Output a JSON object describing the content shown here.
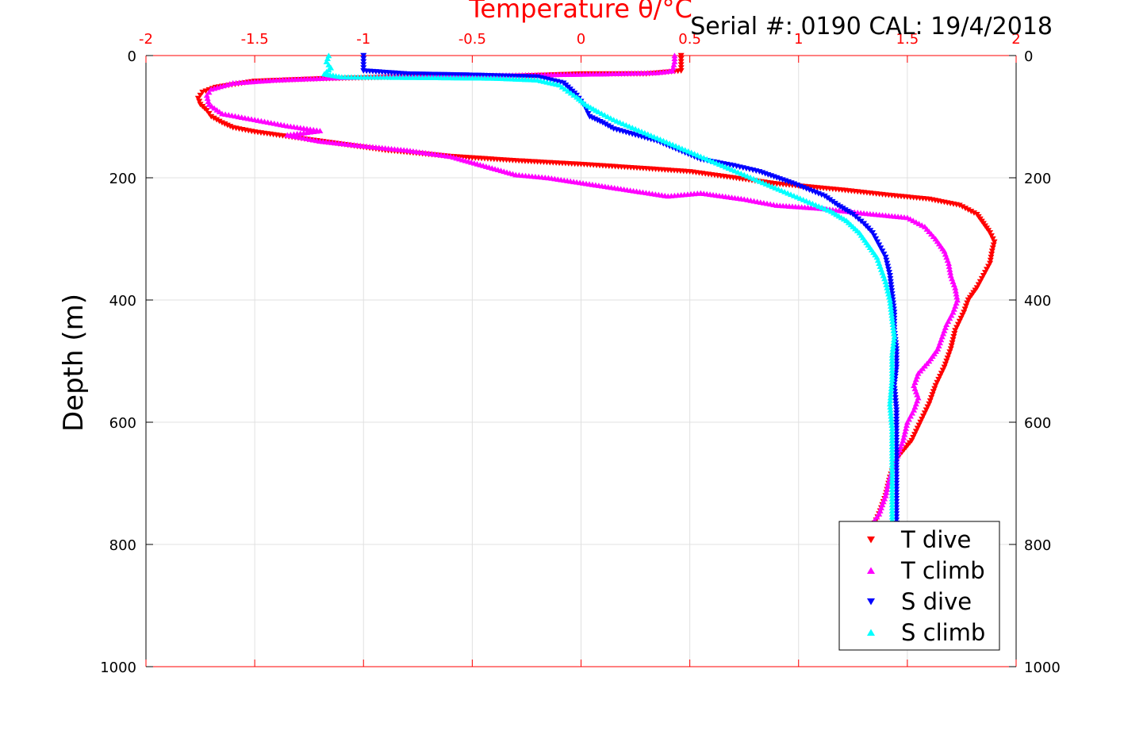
{
  "chart_data": {
    "type": "scatter",
    "title": "Temperature θ/°C",
    "header_text": "Serial #: 0190  CAL: 19/4/2018",
    "ylabel": "Depth (m)",
    "xlim": [
      -2,
      2
    ],
    "ylim": [
      0,
      1000
    ],
    "y_reversed": true,
    "x_ticks": [
      "-2",
      "-1.5",
      "-1",
      "-0.5",
      "0",
      "0.5",
      "1",
      "1.5",
      "2"
    ],
    "y_ticks": [
      "0",
      "200",
      "400",
      "600",
      "800",
      "1000"
    ],
    "grid": true,
    "legend_position": "bottom-right",
    "colors": {
      "axis_top": "#ff0000",
      "axis": "#000000",
      "grid": "#e0e0e0",
      "t_dive": "#ff0000",
      "t_climb": "#ff00ff",
      "s_dive": "#0000ff",
      "s_climb": "#00ffff"
    },
    "series": [
      {
        "name": "T dive",
        "marker": "triangle-down",
        "color": "#ff0000",
        "points": [
          [
            0.46,
            0
          ],
          [
            0.46,
            10
          ],
          [
            0.46,
            25
          ],
          [
            0.3,
            30
          ],
          [
            0.0,
            30
          ],
          [
            -0.4,
            35
          ],
          [
            -0.8,
            35
          ],
          [
            -1.2,
            38
          ],
          [
            -1.5,
            42
          ],
          [
            -1.68,
            52
          ],
          [
            -1.74,
            60
          ],
          [
            -1.76,
            70
          ],
          [
            -1.75,
            80
          ],
          [
            -1.72,
            90
          ],
          [
            -1.7,
            100
          ],
          [
            -1.65,
            110
          ],
          [
            -1.6,
            118
          ],
          [
            -1.5,
            125
          ],
          [
            -1.3,
            135
          ],
          [
            -1.1,
            145
          ],
          [
            -0.9,
            155
          ],
          [
            -0.6,
            165
          ],
          [
            -0.3,
            172
          ],
          [
            0.0,
            178
          ],
          [
            0.3,
            185
          ],
          [
            0.5,
            190
          ],
          [
            0.7,
            200
          ],
          [
            0.9,
            210
          ],
          [
            1.2,
            220
          ],
          [
            1.4,
            228
          ],
          [
            1.6,
            235
          ],
          [
            1.74,
            245
          ],
          [
            1.82,
            260
          ],
          [
            1.85,
            275
          ],
          [
            1.88,
            290
          ],
          [
            1.9,
            305
          ],
          [
            1.89,
            320
          ],
          [
            1.88,
            340
          ],
          [
            1.85,
            360
          ],
          [
            1.82,
            380
          ],
          [
            1.78,
            400
          ],
          [
            1.76,
            420
          ],
          [
            1.72,
            450
          ],
          [
            1.7,
            480
          ],
          [
            1.67,
            510
          ],
          [
            1.63,
            540
          ],
          [
            1.6,
            570
          ],
          [
            1.56,
            600
          ],
          [
            1.52,
            630
          ],
          [
            1.45,
            660
          ],
          [
            1.42,
            690
          ],
          [
            1.4,
            720
          ],
          [
            1.37,
            750
          ],
          [
            1.35,
            765
          ]
        ]
      },
      {
        "name": "T climb",
        "marker": "triangle-up",
        "color": "#ff00ff",
        "points": [
          [
            0.43,
            0
          ],
          [
            0.43,
            10
          ],
          [
            0.42,
            25
          ],
          [
            0.35,
            28
          ],
          [
            0.1,
            30
          ],
          [
            -0.3,
            32
          ],
          [
            -0.7,
            33
          ],
          [
            -1.1,
            36
          ],
          [
            -1.4,
            40
          ],
          [
            -1.6,
            45
          ],
          [
            -1.7,
            55
          ],
          [
            -1.72,
            65
          ],
          [
            -1.71,
            80
          ],
          [
            -1.65,
            95
          ],
          [
            -1.5,
            105
          ],
          [
            -1.35,
            115
          ],
          [
            -1.2,
            123
          ],
          [
            -1.35,
            130
          ],
          [
            -1.2,
            140
          ],
          [
            -1.0,
            148
          ],
          [
            -0.8,
            155
          ],
          [
            -0.6,
            165
          ],
          [
            -0.45,
            180
          ],
          [
            -0.3,
            195
          ],
          [
            -0.15,
            200
          ],
          [
            0.4,
            230
          ],
          [
            0.55,
            225
          ],
          [
            0.75,
            235
          ],
          [
            0.9,
            245
          ],
          [
            1.1,
            250
          ],
          [
            1.3,
            258
          ],
          [
            1.5,
            265
          ],
          [
            1.58,
            280
          ],
          [
            1.63,
            300
          ],
          [
            1.67,
            320
          ],
          [
            1.69,
            340
          ],
          [
            1.7,
            360
          ],
          [
            1.72,
            380
          ],
          [
            1.73,
            400
          ],
          [
            1.71,
            420
          ],
          [
            1.68,
            440
          ],
          [
            1.66,
            460
          ],
          [
            1.64,
            480
          ],
          [
            1.6,
            500
          ],
          [
            1.55,
            520
          ],
          [
            1.53,
            540
          ],
          [
            1.55,
            560
          ],
          [
            1.53,
            580
          ],
          [
            1.5,
            600
          ],
          [
            1.48,
            630
          ],
          [
            1.45,
            660
          ],
          [
            1.42,
            690
          ],
          [
            1.4,
            720
          ],
          [
            1.37,
            750
          ],
          [
            1.35,
            760
          ]
        ]
      },
      {
        "name": "S dive",
        "marker": "triangle-down",
        "color": "#0000ff",
        "points": [
          [
            -1.0,
            0
          ],
          [
            -1.0,
            10
          ],
          [
            -1.0,
            25
          ],
          [
            -0.8,
            30
          ],
          [
            -0.5,
            32
          ],
          [
            -0.2,
            35
          ],
          [
            -0.08,
            45
          ],
          [
            -0.05,
            55
          ],
          [
            -0.02,
            65
          ],
          [
            0.0,
            75
          ],
          [
            0.02,
            85
          ],
          [
            0.04,
            100
          ],
          [
            0.1,
            110
          ],
          [
            0.15,
            120
          ],
          [
            0.25,
            130
          ],
          [
            0.35,
            140
          ],
          [
            0.45,
            155
          ],
          [
            0.55,
            170
          ],
          [
            0.7,
            180
          ],
          [
            0.82,
            190
          ],
          [
            0.9,
            200
          ],
          [
            0.98,
            210
          ],
          [
            1.05,
            220
          ],
          [
            1.12,
            230
          ],
          [
            1.18,
            245
          ],
          [
            1.25,
            260
          ],
          [
            1.3,
            275
          ],
          [
            1.34,
            290
          ],
          [
            1.37,
            310
          ],
          [
            1.4,
            330
          ],
          [
            1.42,
            360
          ],
          [
            1.43,
            390
          ],
          [
            1.44,
            420
          ],
          [
            1.44,
            450
          ],
          [
            1.45,
            480
          ],
          [
            1.45,
            510
          ],
          [
            1.44,
            540
          ],
          [
            1.45,
            580
          ],
          [
            1.45,
            620
          ],
          [
            1.45,
            660
          ],
          [
            1.45,
            700
          ],
          [
            1.45,
            740
          ],
          [
            1.45,
            765
          ]
        ]
      },
      {
        "name": "S climb",
        "marker": "triangle-up",
        "color": "#00ffff",
        "points": [
          [
            -1.16,
            0
          ],
          [
            -1.17,
            10
          ],
          [
            -1.15,
            20
          ],
          [
            -1.18,
            30
          ],
          [
            -1.1,
            35
          ],
          [
            -0.7,
            36
          ],
          [
            -0.4,
            37
          ],
          [
            -0.2,
            40
          ],
          [
            -0.1,
            48
          ],
          [
            -0.06,
            58
          ],
          [
            -0.02,
            68
          ],
          [
            0.02,
            80
          ],
          [
            0.08,
            92
          ],
          [
            0.15,
            105
          ],
          [
            0.25,
            120
          ],
          [
            0.35,
            135
          ],
          [
            0.45,
            150
          ],
          [
            0.55,
            165
          ],
          [
            0.65,
            180
          ],
          [
            0.75,
            195
          ],
          [
            0.85,
            210
          ],
          [
            0.95,
            225
          ],
          [
            1.05,
            240
          ],
          [
            1.15,
            255
          ],
          [
            1.22,
            270
          ],
          [
            1.28,
            290
          ],
          [
            1.32,
            310
          ],
          [
            1.36,
            330
          ],
          [
            1.38,
            350
          ],
          [
            1.4,
            370
          ],
          [
            1.42,
            400
          ],
          [
            1.43,
            430
          ],
          [
            1.44,
            460
          ],
          [
            1.43,
            490
          ],
          [
            1.43,
            530
          ],
          [
            1.42,
            570
          ],
          [
            1.43,
            610
          ],
          [
            1.43,
            650
          ],
          [
            1.43,
            700
          ],
          [
            1.43,
            740
          ],
          [
            1.43,
            765
          ]
        ]
      }
    ]
  }
}
